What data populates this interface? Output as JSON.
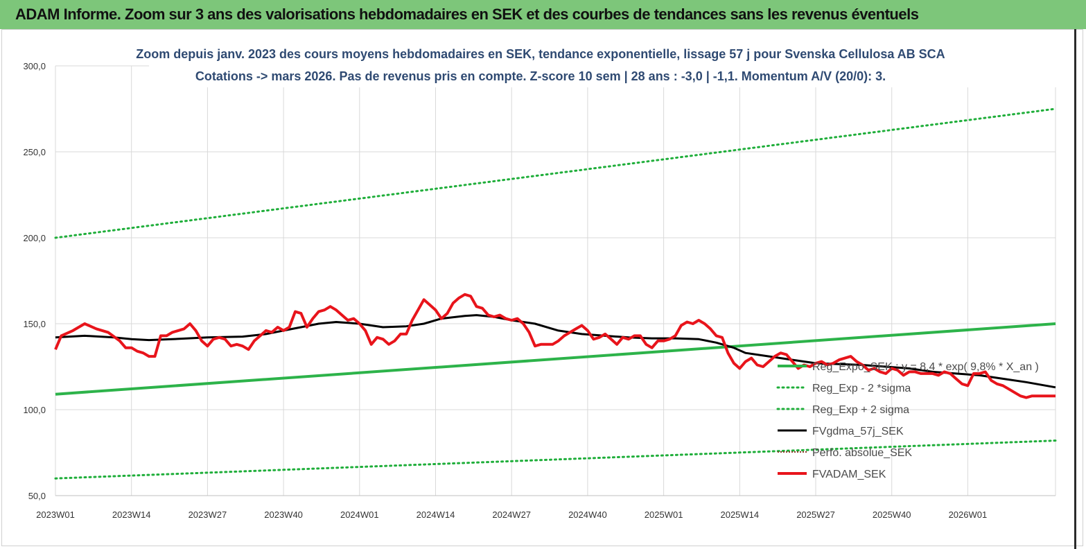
{
  "header": {
    "title": "ADAM Informe. Zoom sur 3 ans des valorisations hebdomadaires en SEK et des courbes de tendances sans les revenus éventuels"
  },
  "colors": {
    "banner": "#7dc67a",
    "reg_exp": "#2db34a",
    "sigma_lines": "#1fae3a",
    "fvgdma": "#000000",
    "perfo": "#8b3a2a",
    "fvadam": "#e8141b",
    "subtitle": "#2f4a72"
  },
  "chart_data": {
    "type": "line",
    "title": "Zoom depuis janv. 2023 des cours moyens hebdomadaires en SEK, tendance exponentielle, lissage 57 j pour Svenska Cellulosa AB SCA",
    "subtitle": "Cotations -> mars 2026. Pas de revenus pris en compte. Z-score 10 sem | 28 ans : -3,0 | -1,1. Momentum A/V (20/0): 3.",
    "xlabel": "",
    "ylabel": "",
    "ylim": [
      50,
      300
    ],
    "y_ticks": [
      "300,0",
      "250,0",
      "200,0",
      "150,0",
      "100,0",
      "50,0"
    ],
    "y_tick_values": [
      300,
      250,
      200,
      150,
      100,
      50
    ],
    "x_ticks": [
      "2023W01",
      "2023W14",
      "2023W27",
      "2023W40",
      "2024W01",
      "2024W14",
      "2024W27",
      "2024W40",
      "2025W01",
      "2025W14",
      "2025W27",
      "2025W40",
      "2026W01"
    ],
    "x_tick_weeks": [
      0,
      13,
      26,
      39,
      52,
      65,
      78,
      91,
      104,
      117,
      130,
      143,
      156
    ],
    "x_range_weeks": [
      0,
      171
    ],
    "grid": true,
    "legend_position": "bottom-right",
    "series": [
      {
        "name": "Reg_Expo_SEK : y = 8,4 * exp( 9,8% *  X_an )",
        "style": "solid-thick",
        "color": "#2db34a",
        "x": [
          0,
          171
        ],
        "y": [
          109,
          150
        ]
      },
      {
        "name": "Reg_Exp - 2 *sigma",
        "style": "dotted",
        "color": "#1fae3a",
        "x": [
          0,
          171
        ],
        "y": [
          60,
          82
        ]
      },
      {
        "name": "Reg_Exp + 2 sigma",
        "style": "dotted",
        "color": "#1fae3a",
        "x": [
          0,
          171
        ],
        "y": [
          200,
          275
        ]
      },
      {
        "name": "FVgdma_57j_SEK",
        "style": "solid",
        "color": "#000000",
        "x": [
          0,
          5,
          10,
          13,
          16,
          20,
          26,
          32,
          36,
          39,
          42,
          45,
          48,
          52,
          56,
          60,
          63,
          66,
          70,
          72,
          75,
          78,
          82,
          86,
          90,
          94,
          98,
          102,
          106,
          110,
          113,
          116,
          118,
          122,
          126,
          130,
          134,
          138,
          142,
          146,
          150,
          154,
          158,
          162,
          166,
          171
        ],
        "y": [
          142,
          143,
          142,
          141,
          140.5,
          141,
          142,
          142.5,
          144,
          146,
          148,
          150,
          151,
          150,
          148,
          148.5,
          150,
          153,
          154.5,
          155,
          154,
          152,
          150,
          146,
          144,
          143,
          142,
          141.5,
          141.5,
          141,
          139,
          136,
          133,
          131,
          129,
          127,
          126.5,
          126,
          125,
          124,
          122,
          121,
          120,
          118,
          116,
          113
        ]
      },
      {
        "name": "Perfo. absolue_SEK",
        "style": "dashed",
        "color": "#8b3a2a",
        "x": [],
        "y": []
      },
      {
        "name": "FVADAM_SEK",
        "style": "solid-thick",
        "color": "#e8141b",
        "x": [
          0,
          1,
          3,
          5,
          7,
          9,
          11,
          12,
          13,
          14,
          15,
          16,
          17,
          18,
          19,
          20,
          21,
          22,
          23,
          24,
          25,
          26,
          27,
          28,
          29,
          30,
          31,
          32,
          33,
          34,
          35,
          36,
          37,
          38,
          39,
          40,
          41,
          42,
          43,
          44,
          45,
          46,
          47,
          48,
          49,
          50,
          51,
          52,
          53,
          54,
          55,
          56,
          57,
          58,
          59,
          60,
          61,
          62,
          63,
          64,
          65,
          66,
          67,
          68,
          69,
          70,
          71,
          72,
          73,
          74,
          75,
          76,
          77,
          78,
          79,
          80,
          81,
          82,
          83,
          84,
          85,
          86,
          87,
          88,
          89,
          90,
          91,
          92,
          93,
          94,
          95,
          96,
          97,
          98,
          99,
          100,
          101,
          102,
          103,
          104,
          105,
          106,
          107,
          108,
          109,
          110,
          111,
          112,
          113,
          114,
          115,
          116,
          117,
          118,
          119,
          120,
          121,
          122,
          123,
          124,
          125,
          126,
          127,
          128,
          129,
          130,
          131,
          132,
          133,
          134,
          135,
          136,
          137,
          138,
          139,
          140,
          141,
          142,
          143,
          144,
          145,
          146,
          147,
          148,
          149,
          150,
          151,
          152,
          153,
          154,
          155,
          156,
          157,
          158,
          159,
          160,
          161,
          162,
          163,
          164,
          165,
          166,
          167,
          168,
          169,
          170,
          171
        ],
        "y": [
          135,
          143,
          146,
          150,
          147,
          145,
          140,
          136,
          136,
          134,
          133,
          131,
          131,
          143,
          143,
          145,
          146,
          147,
          150,
          146,
          140,
          137,
          141,
          142,
          141,
          137,
          138,
          137,
          135,
          140,
          143,
          146,
          145,
          148,
          146,
          148,
          157,
          156,
          148,
          153,
          157,
          158,
          160,
          158,
          155,
          152,
          153,
          150,
          146,
          138,
          142,
          141,
          138,
          140,
          144,
          144,
          152,
          158,
          164,
          161,
          158,
          153,
          156,
          162,
          165,
          167,
          166,
          160,
          159,
          155,
          154,
          155,
          153,
          152,
          153,
          150,
          145,
          137,
          138,
          138,
          138,
          140,
          143,
          145,
          147,
          149,
          146,
          141,
          142,
          144,
          141,
          138,
          142,
          141,
          143,
          143,
          138,
          136,
          140,
          140,
          141,
          143,
          149,
          151,
          150,
          152,
          150,
          147,
          143,
          142,
          133,
          127,
          124,
          128,
          130,
          126,
          125,
          128,
          131,
          133,
          132,
          128,
          124,
          126,
          125,
          127,
          128,
          126,
          127,
          129,
          130,
          131,
          128,
          126,
          123,
          124,
          122,
          121,
          124,
          123,
          120,
          122,
          122,
          121,
          121,
          121,
          120,
          122,
          121,
          118,
          115,
          114,
          121,
          121,
          122,
          117,
          115,
          114,
          112,
          110,
          108,
          107,
          108,
          108,
          108,
          108,
          108
        ]
      }
    ],
    "legend": [
      "Reg_Expo_SEK : y = 8,4 * exp( 9,8% *  X_an )",
      "Reg_Exp - 2 *sigma",
      "Reg_Exp + 2 sigma",
      "FVgdma_57j_SEK",
      "Perfo. absolue_SEK",
      "FVADAM_SEK"
    ]
  }
}
